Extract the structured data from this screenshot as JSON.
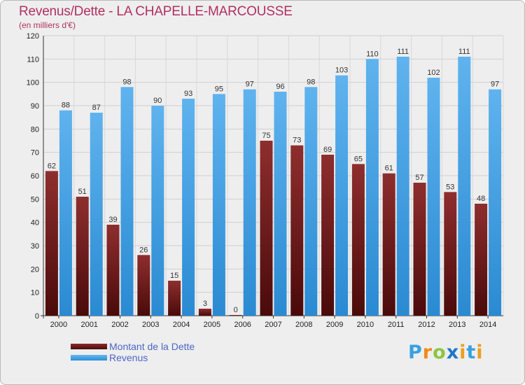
{
  "header": {
    "title": "Revenus/Dette - LA CHAPELLE-MARCOUSSE",
    "subtitle": "(en milliers d'€)"
  },
  "chart_data": {
    "type": "bar",
    "categories": [
      "2000",
      "2001",
      "2002",
      "2003",
      "2004",
      "2005",
      "2006",
      "2007",
      "2008",
      "2009",
      "2010",
      "2011",
      "2012",
      "2013",
      "2014"
    ],
    "series": [
      {
        "name": "Montant de la Dette",
        "values": [
          62,
          51,
          39,
          26,
          15,
          3,
          0,
          75,
          73,
          69,
          65,
          61,
          57,
          53,
          48
        ],
        "color": "#7a1f1f"
      },
      {
        "name": "Revenus",
        "values": [
          88,
          87,
          98,
          90,
          93,
          95,
          97,
          96,
          98,
          103,
          110,
          111,
          102,
          111,
          97
        ],
        "color": "#4aa4e6"
      }
    ],
    "ylim": [
      0,
      120
    ],
    "yticks": [
      0,
      10,
      20,
      30,
      40,
      50,
      60,
      70,
      80,
      90,
      100,
      110,
      120
    ],
    "grid": true,
    "legend": "bottom-left"
  },
  "legend": {
    "debt_label": "Montant de la Dette",
    "revenue_label": "Revenus"
  },
  "logo": {
    "p": "P",
    "r": "r",
    "o": "o",
    "x": "x",
    "i": "i",
    "t": "t",
    "i2": "i"
  },
  "colors": {
    "title": "#b03060",
    "debt": "#7a1f1f",
    "revenue": "#4aa4e6",
    "background": "#eeeeee"
  }
}
